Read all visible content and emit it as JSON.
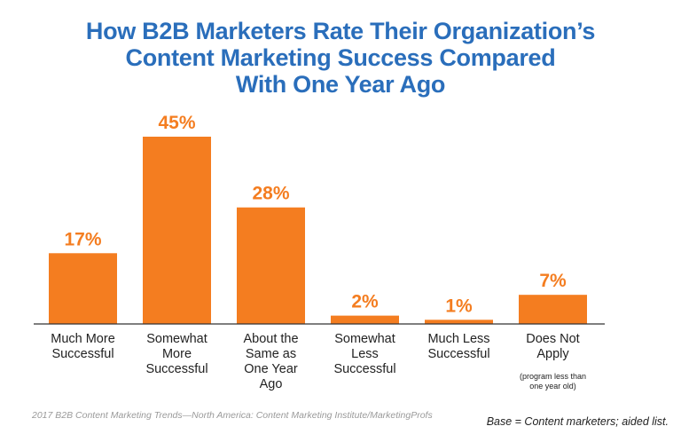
{
  "title_lines": [
    "How B2B Marketers Rate Their Organization’s",
    "Content Marketing Success Compared",
    "With One Year Ago"
  ],
  "chart_data": {
    "type": "bar",
    "title": "How B2B Marketers Rate Their Organization’s Content Marketing Success Compared With One Year Ago",
    "categories": [
      [
        "Much More",
        "Successful"
      ],
      [
        "Somewhat",
        "More",
        "Successful"
      ],
      [
        "About the",
        "Same as",
        "One Year",
        "Ago"
      ],
      [
        "Somewhat",
        "Less",
        "Successful"
      ],
      [
        "Much Less",
        "Successful"
      ],
      [
        "Does Not",
        "Apply"
      ]
    ],
    "category_notes": [
      "",
      "",
      "",
      "",
      "",
      "(program less than one year old)"
    ],
    "values": [
      17,
      45,
      28,
      2,
      1,
      7
    ],
    "value_labels": [
      "17%",
      "45%",
      "28%",
      "2%",
      "1%",
      "7%"
    ],
    "ylim": [
      0,
      45
    ],
    "grid": false,
    "bar_color": "#f47d20"
  },
  "footer": {
    "source": "2017 B2B Content Marketing Trends—North America: Content Marketing Institute/MarketingProfs",
    "base": "Base = Content marketers; aided list."
  },
  "colors": {
    "title": "#2a6ebb",
    "bars": "#f47d20",
    "baseline": "#333333"
  }
}
